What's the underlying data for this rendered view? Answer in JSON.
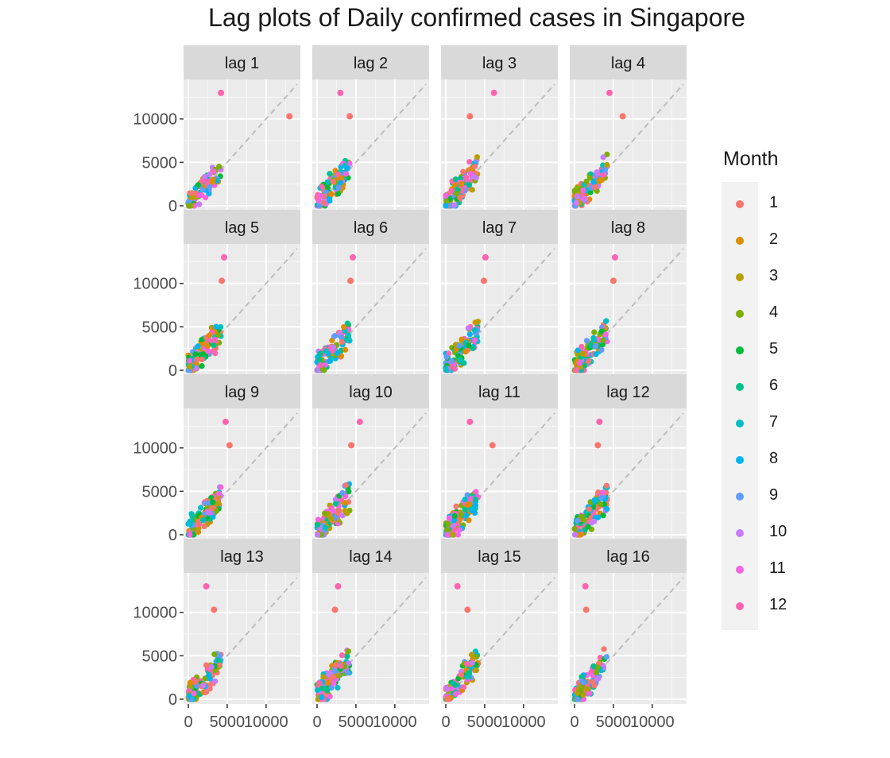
{
  "title": "Lag plots of Daily confirmed cases in Singapore",
  "chart_data": {
    "type": "scatter",
    "title": "Lag plots of Daily confirmed cases in Singapore",
    "facets": [
      "lag 1",
      "lag 2",
      "lag 3",
      "lag 4",
      "lag 5",
      "lag 6",
      "lag 7",
      "lag 8",
      "lag 9",
      "lag 10",
      "lag 11",
      "lag 12",
      "lag 13",
      "lag 14",
      "lag 15",
      "lag 16"
    ],
    "facet_layout": "4x4",
    "xlim": [
      0,
      14000
    ],
    "ylim": [
      0,
      14000
    ],
    "x_ticks": [
      0,
      5000,
      10000
    ],
    "y_ticks": [
      0,
      5000,
      10000
    ],
    "x_tick_labels": [
      "0",
      "5000",
      "10000"
    ],
    "y_tick_labels": [
      "0",
      "5000",
      "10000"
    ],
    "reference_line": "y = x (dashed, grey)",
    "grid": true,
    "legend": {
      "title": "Month",
      "placement": "right",
      "entries": [
        "1",
        "2",
        "3",
        "4",
        "5",
        "6",
        "7",
        "8",
        "9",
        "10",
        "11",
        "12"
      ],
      "colors": [
        "#F8766D",
        "#DE8C00",
        "#B79F00",
        "#7CAE00",
        "#00BA38",
        "#00C08B",
        "#00BFC4",
        "#00B4F0",
        "#619CFF",
        "#C77CFF",
        "#F564E3",
        "#FF64B0"
      ]
    },
    "highlight_points": [
      {
        "lag": 1,
        "x": 13000,
        "y": 10300,
        "month": 1
      },
      {
        "lag": 1,
        "x": 4200,
        "y": 13000,
        "month": 12
      },
      {
        "lag": 2,
        "x": 4200,
        "y": 10300,
        "month": 1
      },
      {
        "lag": 2,
        "x": 3000,
        "y": 13000,
        "month": 12
      },
      {
        "lag": 3,
        "x": 3100,
        "y": 10300,
        "month": 1
      },
      {
        "lag": 3,
        "x": 6200,
        "y": 13000,
        "month": 12
      },
      {
        "lag": 4,
        "x": 6200,
        "y": 10300,
        "month": 1
      },
      {
        "lag": 4,
        "x": 4500,
        "y": 13000,
        "month": 12
      },
      {
        "lag": 5,
        "x": 4300,
        "y": 10300,
        "month": 1
      },
      {
        "lag": 5,
        "x": 4600,
        "y": 13000,
        "month": 12
      },
      {
        "lag": 6,
        "x": 4300,
        "y": 10300,
        "month": 1
      },
      {
        "lag": 6,
        "x": 4600,
        "y": 13000,
        "month": 12
      },
      {
        "lag": 7,
        "x": 4900,
        "y": 10300,
        "month": 1
      },
      {
        "lag": 7,
        "x": 5100,
        "y": 13000,
        "month": 12
      },
      {
        "lag": 8,
        "x": 5000,
        "y": 10300,
        "month": 1
      },
      {
        "lag": 8,
        "x": 5200,
        "y": 13000,
        "month": 12
      },
      {
        "lag": 9,
        "x": 5300,
        "y": 10300,
        "month": 1
      },
      {
        "lag": 9,
        "x": 4800,
        "y": 13000,
        "month": 12
      },
      {
        "lag": 10,
        "x": 4400,
        "y": 10300,
        "month": 1
      },
      {
        "lag": 10,
        "x": 5500,
        "y": 13000,
        "month": 12
      },
      {
        "lag": 11,
        "x": 6000,
        "y": 10300,
        "month": 1
      },
      {
        "lag": 11,
        "x": 3100,
        "y": 13000,
        "month": 12
      },
      {
        "lag": 12,
        "x": 3000,
        "y": 10300,
        "month": 1
      },
      {
        "lag": 12,
        "x": 3200,
        "y": 13000,
        "month": 12
      },
      {
        "lag": 13,
        "x": 3300,
        "y": 10300,
        "month": 1
      },
      {
        "lag": 13,
        "x": 2300,
        "y": 13000,
        "month": 12
      },
      {
        "lag": 14,
        "x": 2300,
        "y": 10300,
        "month": 1
      },
      {
        "lag": 14,
        "x": 2700,
        "y": 13000,
        "month": 12
      },
      {
        "lag": 15,
        "x": 2800,
        "y": 10300,
        "month": 1
      },
      {
        "lag": 15,
        "x": 1500,
        "y": 13000,
        "month": 12
      },
      {
        "lag": 16,
        "x": 1500,
        "y": 10300,
        "month": 1
      },
      {
        "lag": 16,
        "x": 1400,
        "y": 13000,
        "month": 12
      }
    ],
    "cluster_note": "Remaining points cluster between 0 and about 6500 on both axes"
  }
}
